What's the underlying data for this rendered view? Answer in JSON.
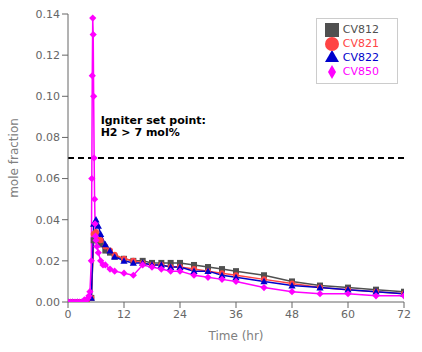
{
  "chart_data": {
    "type": "line",
    "xlabel": "Time (hr)",
    "ylabel": "mole fraction",
    "xlim": [
      0,
      72
    ],
    "ylim": [
      0,
      0.14
    ],
    "xticks": [
      0,
      12,
      24,
      36,
      48,
      60,
      72
    ],
    "yticks": [
      {
        "value": 0,
        "label": "0.00"
      },
      0.02,
      0.04,
      0.06,
      0.08,
      {
        "value": 0.1,
        "label": "0.10"
      },
      0.12,
      0.14
    ],
    "grid": false,
    "legend": "upper right",
    "hlines": [
      {
        "y": 0.07,
        "color": "#000000",
        "line_style": "dashed"
      }
    ],
    "annotations": [
      {
        "text": [
          "Igniter set point:",
          "H2 > 7 mol%"
        ],
        "x": 7.0,
        "y": 0.079
      }
    ],
    "series": [
      {
        "name": "CV812",
        "color": "#505050",
        "marker": "square",
        "x": [
          0.0,
          1.0,
          2.0,
          3.0,
          4.0,
          5.0,
          5.5,
          6.0,
          6.5,
          7.0,
          8.0,
          9.0,
          10.0,
          12.0,
          14.0,
          16.0,
          18.0,
          20.0,
          22.0,
          24.0,
          27.0,
          30.0,
          33.0,
          36.0,
          42.0,
          48.0,
          54.0,
          60.0,
          66.0,
          72.0
        ],
        "values": [
          0.0,
          0.0,
          0.0,
          0.0,
          0.0,
          0.002,
          0.03,
          0.032,
          0.03,
          0.028,
          0.025,
          0.024,
          0.022,
          0.021,
          0.02,
          0.02,
          0.019,
          0.019,
          0.019,
          0.019,
          0.018,
          0.017,
          0.016,
          0.015,
          0.013,
          0.01,
          0.008,
          0.007,
          0.006,
          0.005
        ]
      },
      {
        "name": "CV821",
        "color": "#ff4444",
        "marker": "circle",
        "x": [
          0.0,
          1.0,
          2.0,
          3.0,
          4.0,
          5.0,
          5.5,
          6.0,
          6.5,
          7.0,
          8.0,
          9.0,
          10.0,
          12.0,
          14.0,
          16.0,
          18.0,
          20.0,
          22.0,
          24.0,
          27.0,
          30.0,
          33.0,
          36.0,
          42.0,
          48.0,
          54.0,
          60.0,
          66.0,
          72.0
        ],
        "values": [
          0.0,
          0.0,
          0.0,
          0.0,
          0.0,
          0.002,
          0.033,
          0.034,
          0.032,
          0.03,
          0.027,
          0.025,
          0.023,
          0.021,
          0.02,
          0.019,
          0.018,
          0.018,
          0.017,
          0.017,
          0.016,
          0.015,
          0.014,
          0.013,
          0.011,
          0.009,
          0.007,
          0.006,
          0.005,
          0.004
        ]
      },
      {
        "name": "CV822",
        "color": "#0000cc",
        "marker": "triangle",
        "x": [
          0.0,
          1.0,
          2.0,
          3.0,
          4.0,
          5.0,
          5.5,
          6.0,
          6.5,
          7.0,
          8.0,
          9.0,
          10.0,
          12.0,
          14.0,
          16.0,
          18.0,
          20.0,
          22.0,
          24.0,
          27.0,
          30.0,
          33.0,
          36.0,
          42.0,
          48.0,
          54.0,
          60.0,
          66.0,
          72.0
        ],
        "values": [
          0.0,
          0.0,
          0.0,
          0.0,
          0.0,
          0.002,
          0.038,
          0.04,
          0.037,
          0.033,
          0.028,
          0.025,
          0.022,
          0.02,
          0.019,
          0.019,
          0.018,
          0.018,
          0.017,
          0.017,
          0.015,
          0.015,
          0.013,
          0.012,
          0.01,
          0.008,
          0.007,
          0.006,
          0.005,
          0.004
        ]
      },
      {
        "name": "CV850",
        "color": "#ff00ff",
        "marker": "diamond",
        "x": [
          0.0,
          0.5,
          1.0,
          1.5,
          2.0,
          2.5,
          3.0,
          3.5,
          4.0,
          4.3,
          4.5,
          4.7,
          5.0,
          5.1,
          5.2,
          5.3,
          5.4,
          5.5,
          5.6,
          5.7,
          5.8,
          5.9,
          6.0,
          6.2,
          6.5,
          7.0,
          7.5,
          8.0,
          9.0,
          10.0,
          12.0,
          14.0,
          16.0,
          18.0,
          20.0,
          22.0,
          24.0,
          27.0,
          30.0,
          33.0,
          36.0,
          42.0,
          48.0,
          54.0,
          60.0,
          66.0,
          72.0
        ],
        "values": [
          0.0,
          0.0,
          0.0,
          0.0,
          0.0,
          0.0,
          0.0,
          0.001,
          0.001,
          0.002,
          0.003,
          0.005,
          0.02,
          0.06,
          0.11,
          0.138,
          0.13,
          0.1,
          0.07,
          0.05,
          0.038,
          0.032,
          0.03,
          0.027,
          0.024,
          0.02,
          0.018,
          0.018,
          0.016,
          0.015,
          0.014,
          0.013,
          0.018,
          0.017,
          0.016,
          0.015,
          0.015,
          0.013,
          0.012,
          0.011,
          0.01,
          0.007,
          0.005,
          0.004,
          0.004,
          0.003,
          0.003
        ]
      }
    ]
  }
}
